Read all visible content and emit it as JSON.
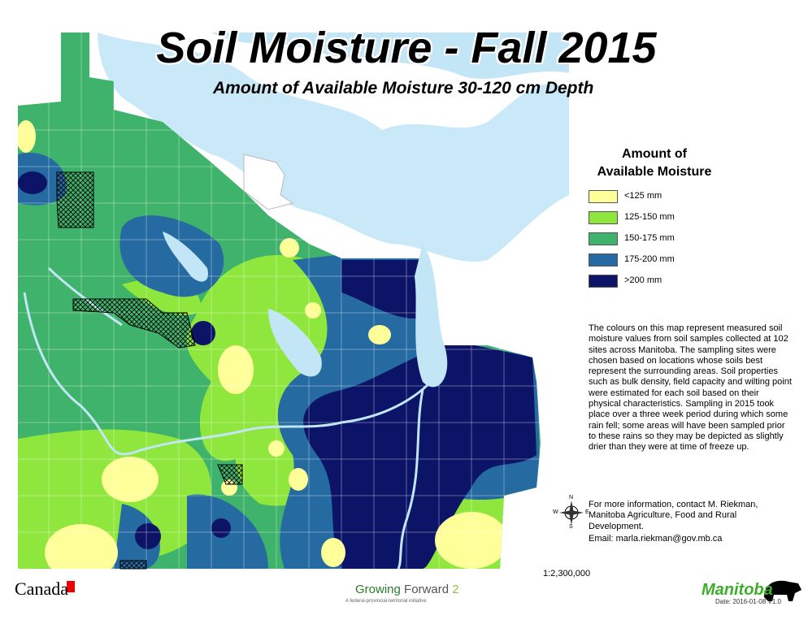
{
  "title": "Soil Moisture - Fall 2015",
  "subtitle": "Amount of Available Moisture 30-120 cm Depth",
  "legend": {
    "title_lines": [
      "Amount of",
      "Available Moisture"
    ],
    "items": [
      {
        "label": "<125 mm",
        "color": "#ffff99"
      },
      {
        "label": "125-150 mm",
        "color": "#8fe63c"
      },
      {
        "label": "150-175 mm",
        "color": "#3fb36b"
      },
      {
        "label": "175-200 mm",
        "color": "#256aa1"
      },
      {
        "label": ">200 mm",
        "color": "#0b1466"
      }
    ]
  },
  "description": "The colours on this map represent measured soil moisture values from soil samples collected at 102 sites across Manitoba.  The sampling sites were chosen based on locations whose soils best represent the surrounding areas.  Soil properties such as bulk density, field capacity and wilting point were estimated for each soil based on their physical characteristics.  Sampling in 2015 took place over a three week period during which some rain fell; some areas will have been sampled prior to these rains so they may be depicted as slightly drier than they were at time of freeze up.",
  "contact": "For more information, contact M. Riekman, Manitoba Agriculture, Food and Rural Development.",
  "email": "Email: marla.riekman@gov.mb.ca",
  "compass": {
    "n": "N",
    "s": "S",
    "e": "E",
    "w": "W"
  },
  "scale": "1:2,300,000",
  "logos": {
    "canada": "Canada",
    "growing": "Growing",
    "forward": "Forward",
    "two": "2",
    "tagline": "A federal-provincial-territorial initiative",
    "manitoba": "Manitoba"
  },
  "date": "Date: 2016-01-08 V1.0"
}
